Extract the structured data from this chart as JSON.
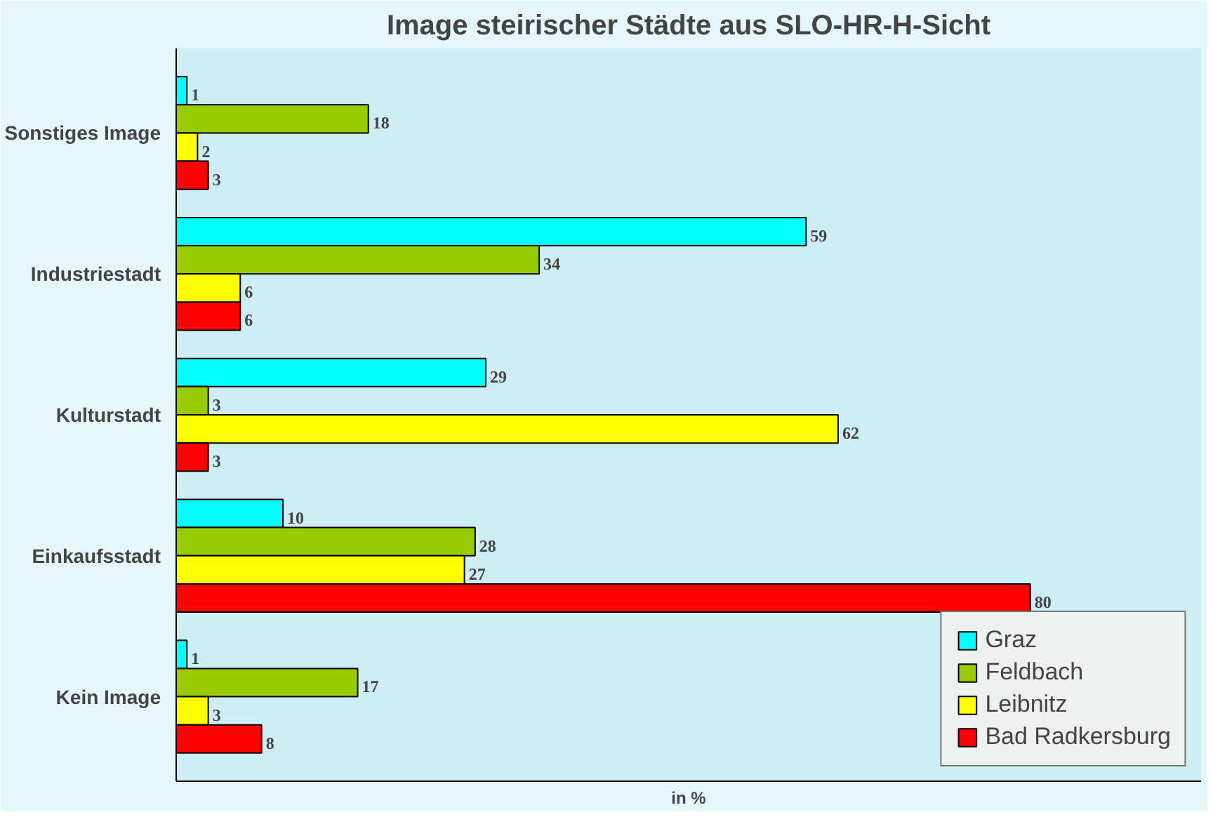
{
  "chart_data": {
    "type": "bar",
    "orientation": "horizontal",
    "title": "Image steirischer Städte aus SLO-HR-H-Sicht",
    "xlabel": "in %",
    "categories": [
      "Sonstiges Image",
      "Industriestadt",
      "Kulturstadt",
      "Einkaufsstadt",
      "Kein Image"
    ],
    "series": [
      {
        "name": "Graz",
        "color": "#00ffff",
        "values": [
          1,
          59,
          29,
          10,
          1
        ]
      },
      {
        "name": "Feldbach",
        "color": "#99cc00",
        "values": [
          18,
          34,
          3,
          28,
          17
        ]
      },
      {
        "name": "Leibnitz",
        "color": "#ffff00",
        "values": [
          2,
          6,
          62,
          27,
          3
        ]
      },
      {
        "name": "Bad Radkersburg",
        "color": "#ff0000",
        "values": [
          3,
          6,
          3,
          80,
          8
        ]
      }
    ],
    "data_labels": true,
    "legend": "bottom right",
    "tick_labels": "y"
  }
}
